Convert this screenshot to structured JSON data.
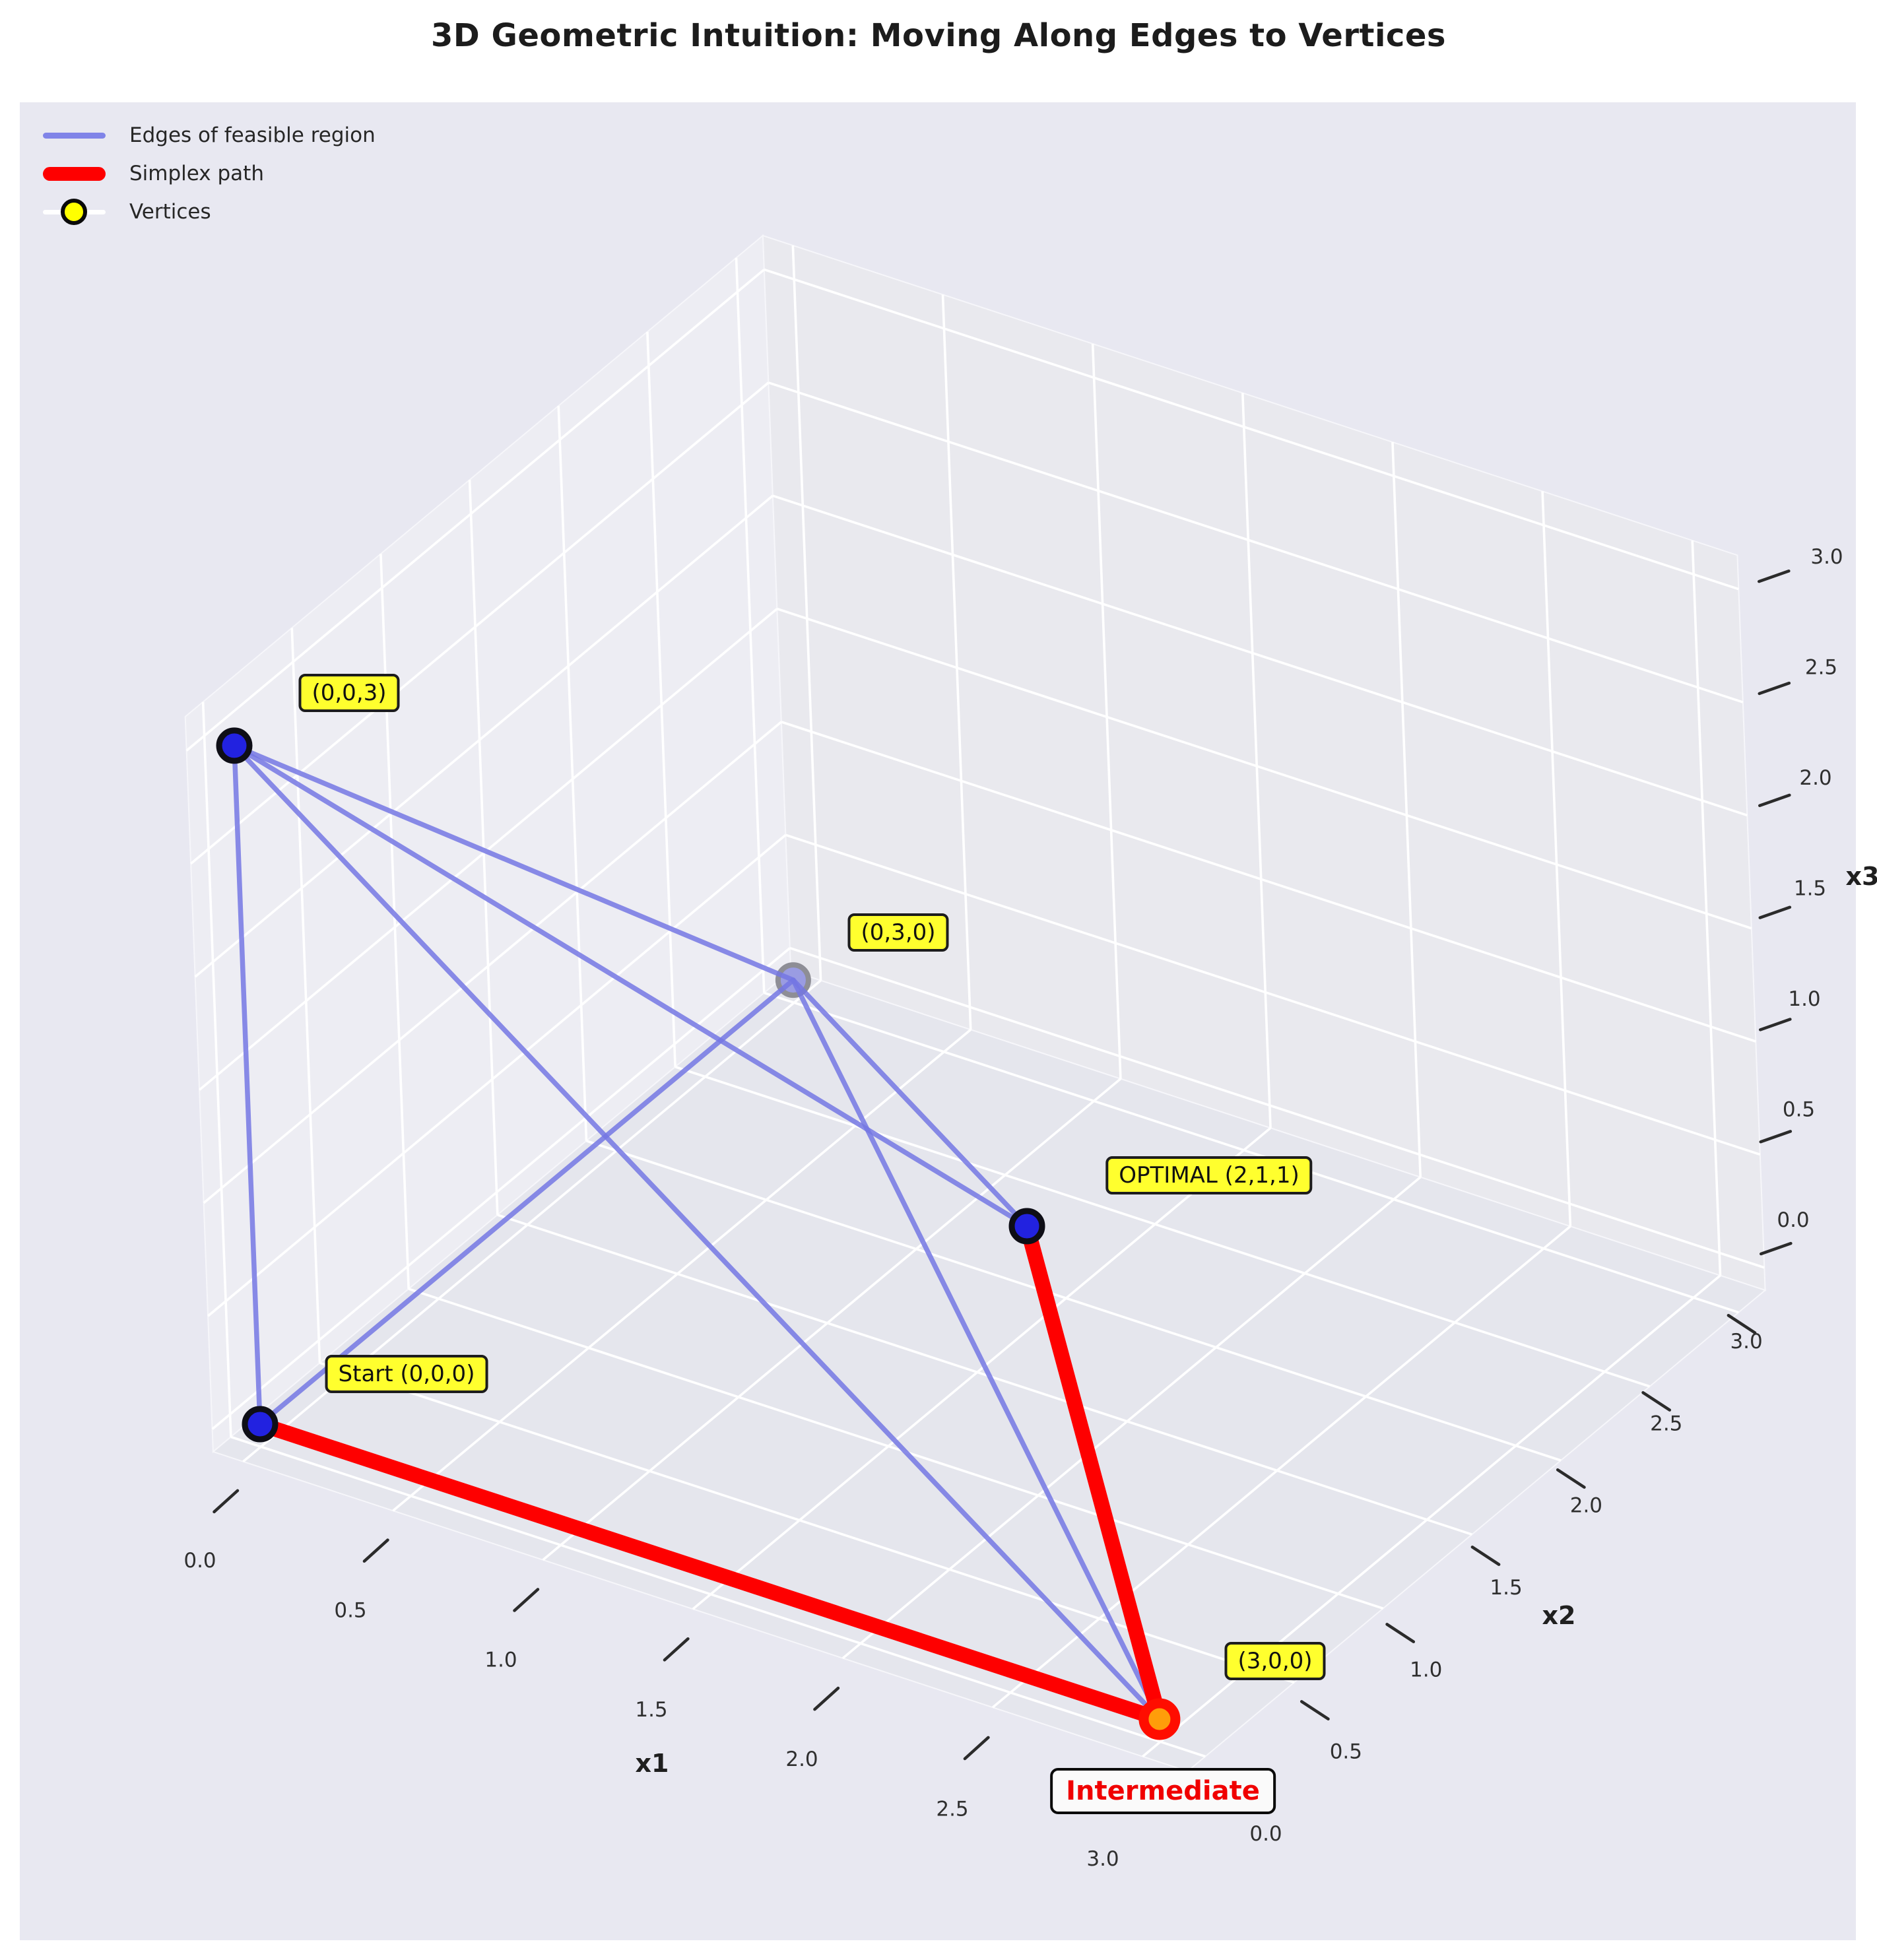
{
  "title": "3D Geometric Intuition: Moving Along Edges to Vertices",
  "legend": {
    "items": [
      {
        "label": "Edges of feasible region",
        "marker": "line",
        "color": "#8084e8"
      },
      {
        "label": "Simplex path",
        "marker": "thick-line",
        "color": "#fe0000"
      },
      {
        "label": "Vertices",
        "marker": "circle",
        "color": "#ffff00"
      }
    ]
  },
  "chart_data": {
    "type": "scatter",
    "subtype": "3d-polytope-edge-network",
    "title": "3D Geometric Intuition: Moving Along Edges to Vertices",
    "axes": {
      "x1": {
        "label": "x1",
        "ticks": [
          0,
          0.5,
          1,
          1.5,
          2,
          2.5,
          3
        ],
        "tick_labels": [
          "0.0",
          "0.5",
          "1.0",
          "1.5",
          "2.0",
          "2.5",
          "3.0"
        ],
        "range": [
          0,
          3
        ]
      },
      "x2": {
        "label": "x2",
        "ticks": [
          0,
          0.5,
          1,
          1.5,
          2,
          2.5,
          3
        ],
        "tick_labels": [
          "0.0",
          "0.5",
          "1.0",
          "1.5",
          "2.0",
          "2.5",
          "3.0"
        ],
        "range": [
          0,
          3
        ]
      },
      "x3": {
        "label": "x3",
        "ticks": [
          0,
          0.5,
          1,
          1.5,
          2,
          2.5,
          3
        ],
        "tick_labels": [
          "0.0",
          "0.5",
          "1.0",
          "1.5",
          "2.0",
          "2.5",
          "3.0"
        ],
        "range": [
          0,
          3
        ]
      }
    },
    "grid": true,
    "legend_position": "upper left",
    "vertices": [
      {
        "id": "origin",
        "coords": [
          0,
          0,
          0
        ],
        "annotation": "Start (0,0,0)",
        "marker": "blue"
      },
      {
        "id": "x1max",
        "coords": [
          3,
          0,
          0
        ],
        "annotation": "(3,0,0)",
        "marker": "orange-red"
      },
      {
        "id": "x2max",
        "coords": [
          0,
          3,
          0
        ],
        "annotation": "(0,3,0)",
        "marker": "faded-blue"
      },
      {
        "id": "x3max",
        "coords": [
          0,
          0,
          3
        ],
        "annotation": "(0,0,3)",
        "marker": "blue"
      },
      {
        "id": "optimal",
        "coords": [
          2,
          1,
          1
        ],
        "annotation": "OPTIMAL (2,1,1)",
        "marker": "blue"
      }
    ],
    "edges": [
      [
        "origin",
        "x3max"
      ],
      [
        "origin",
        "x2max"
      ],
      [
        "x3max",
        "x2max"
      ],
      [
        "x3max",
        "optimal"
      ],
      [
        "x3max",
        "x1max"
      ],
      [
        "x2max",
        "optimal"
      ],
      [
        "x2max",
        "x1max"
      ],
      [
        "origin",
        "x1max"
      ],
      [
        "optimal",
        "x1max"
      ]
    ],
    "simplex_path": [
      "origin",
      "x1max",
      "optimal"
    ],
    "extra_label": {
      "text": "Intermediate",
      "applies_to": "x1max"
    },
    "colors": {
      "edge": "#7477e3",
      "path": "#fe0000",
      "vertex": "#2222e0",
      "vertex_edge": "#0e0e16",
      "faded_vertex": "#9a9ce2",
      "faded_vertex_edge": "#8e8e96",
      "intermediate_fill": "#ff9d0a",
      "intermediate_ring": "#ff0d00",
      "grid": "#ffffff",
      "plot_bg": "#e8e8f1",
      "pane_left": "#ededf3",
      "pane_right": "#e9e9ee",
      "pane_floor": "#e5e6ed",
      "label_box": "#ffff2e",
      "tick_text": "#2f2f2f",
      "axis_label_text": "#1f1f1f"
    }
  }
}
